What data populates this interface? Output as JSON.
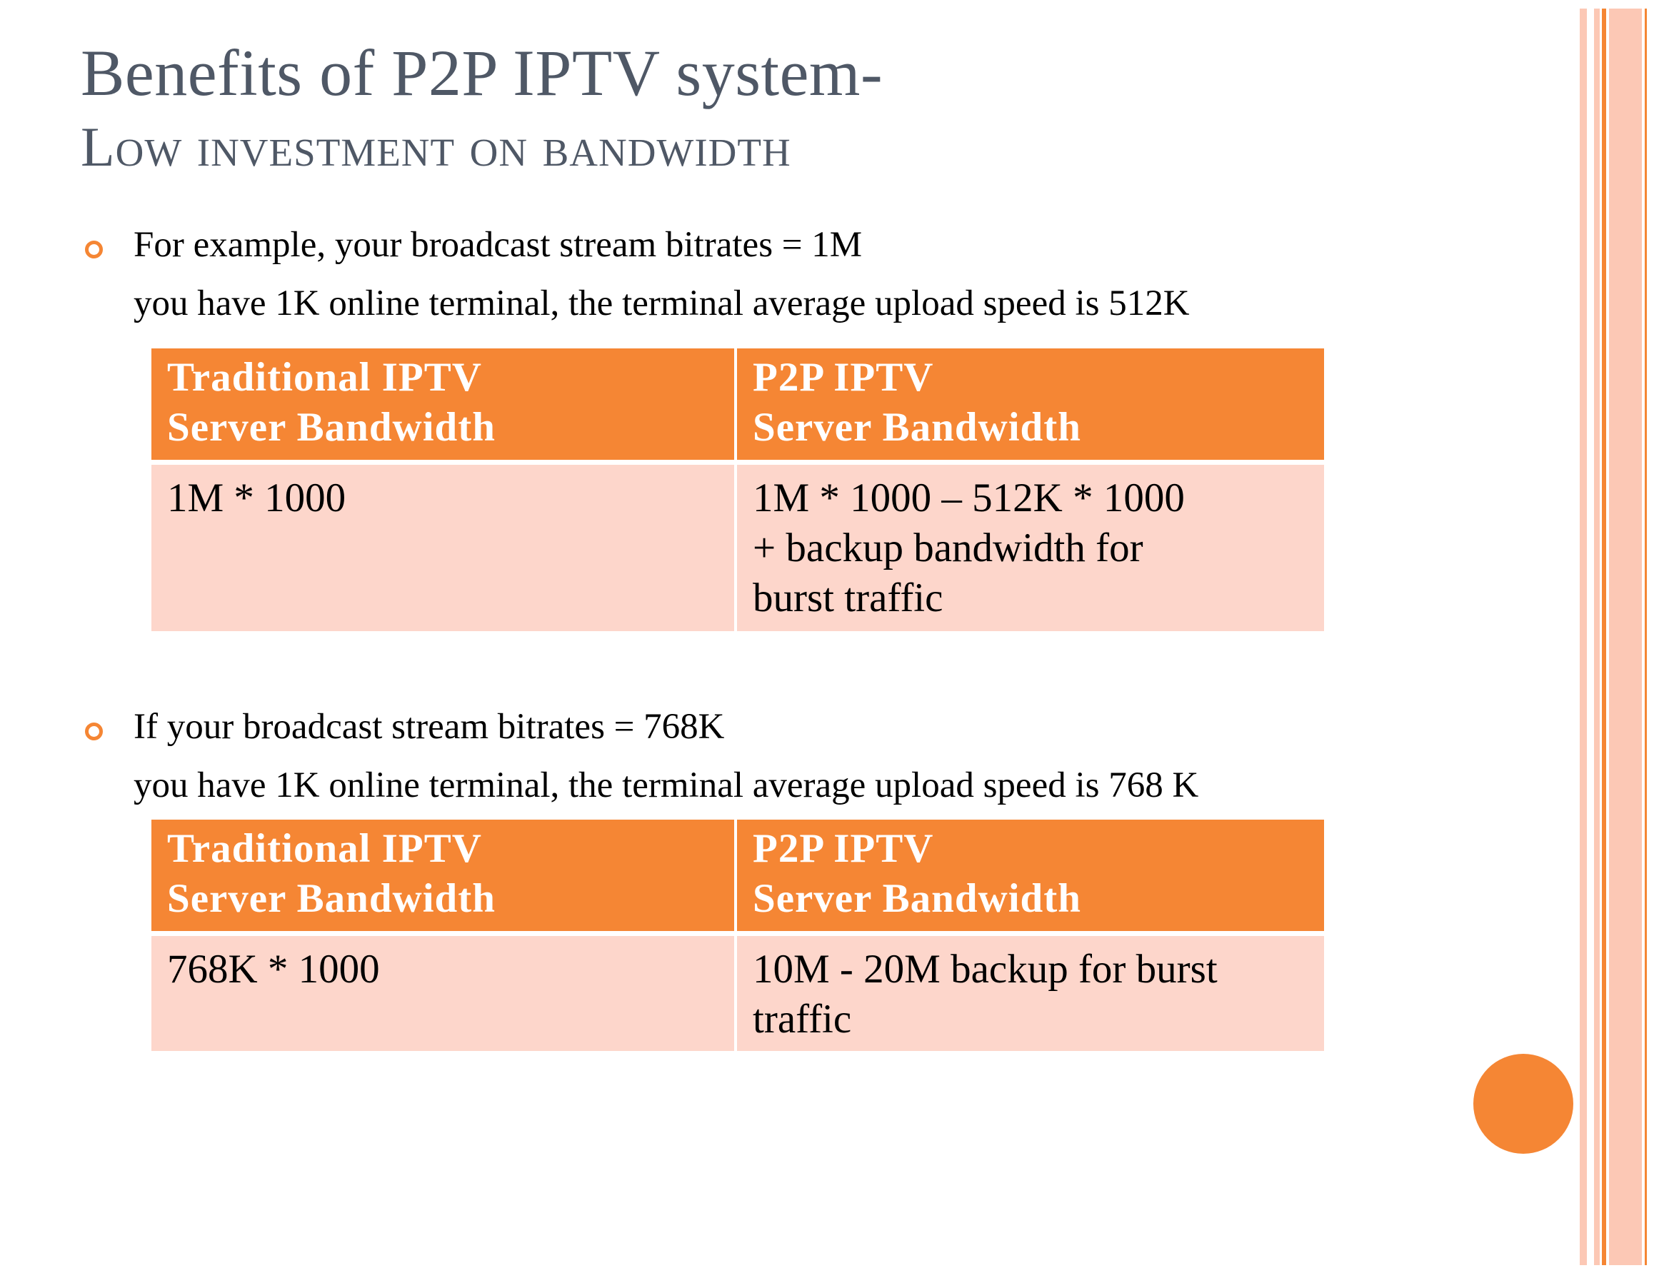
{
  "title": {
    "line1": "Benefits of P2P IPTV system-",
    "line2": "Low investment on bandwidth"
  },
  "colors": {
    "accent": "#f58634",
    "accent_light": "#fdd6cb",
    "title_text": "#4f5866"
  },
  "example1": {
    "bullet_line1": "For example, your broadcast stream bitrates = 1M",
    "bullet_line2": "you have 1K online terminal, the terminal average upload speed is 512K",
    "table": {
      "headers": [
        "Traditional IPTV\nServer Bandwidth",
        "P2P IPTV\nServer Bandwidth"
      ],
      "rows": [
        [
          "1M * 1000",
          "1M * 1000 – 512K * 1000\n+ backup bandwidth for\nburst traffic"
        ]
      ]
    }
  },
  "example2": {
    "bullet_line1": "If your broadcast stream bitrates = 768K",
    "bullet_line2": "you have 1K online terminal, the terminal average upload speed is 768 K",
    "table": {
      "headers": [
        "Traditional IPTV\nServer Bandwidth",
        "P2P IPTV\nServer Bandwidth"
      ],
      "rows": [
        [
          "768K * 1000",
          "10M - 20M backup for burst\ntraffic"
        ]
      ]
    }
  }
}
